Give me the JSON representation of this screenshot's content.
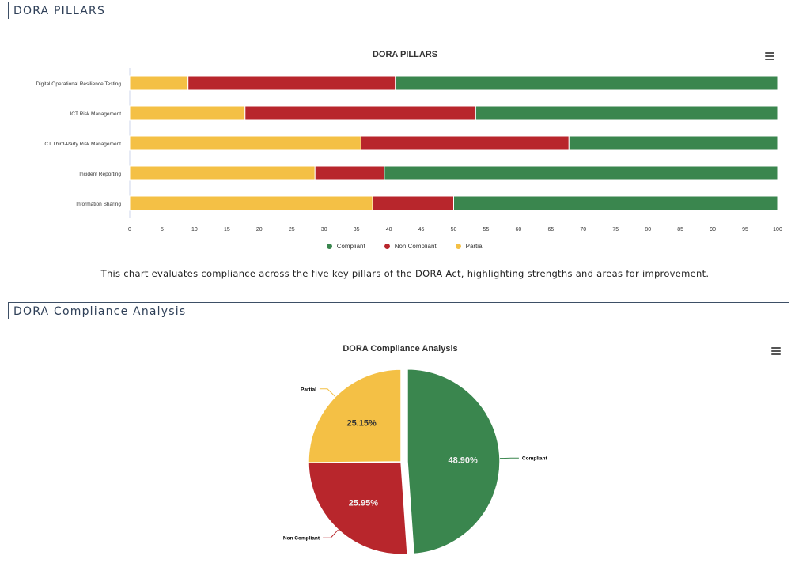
{
  "sections": {
    "pillars_header": "DORA PILLARS",
    "analysis_header": "DORA Compliance Analysis"
  },
  "caption": "This chart evaluates compliance across the five key pillars of the DORA Act, highlighting strengths and areas for improvement.",
  "colors": {
    "compliant": "#3a864e",
    "non_compliant": "#b8262c",
    "partial": "#f4c045"
  },
  "menu_icon": "hamburger-menu-icon",
  "chart_data": [
    {
      "type": "bar",
      "orientation": "horizontal",
      "stacked": true,
      "title": "DORA PILLARS",
      "categories": [
        "Digital Operational Resilience Testing",
        "ICT Risk Management",
        "ICT Third-Party Risk Management",
        "Incident Reporting",
        "Information Sharing"
      ],
      "series": [
        {
          "name": "Partial",
          "key": "partial",
          "values": [
            9,
            17.8,
            35.7,
            28.6,
            37.5
          ]
        },
        {
          "name": "Non Compliant",
          "key": "non_compliant",
          "values": [
            32,
            35.6,
            32.1,
            10.7,
            12.5
          ]
        },
        {
          "name": "Compliant",
          "key": "compliant",
          "values": [
            59,
            46.6,
            32.2,
            60.7,
            50
          ]
        }
      ],
      "legend": [
        {
          "name": "Compliant",
          "key": "compliant"
        },
        {
          "name": "Non Compliant",
          "key": "non_compliant"
        },
        {
          "name": "Partial",
          "key": "partial"
        }
      ],
      "xlim": [
        0,
        100
      ],
      "xticks": [
        "0",
        "5",
        "10",
        "15",
        "20",
        "25",
        "30",
        "35",
        "40",
        "45",
        "50",
        "55",
        "60",
        "65",
        "70",
        "75",
        "80",
        "85",
        "90",
        "95",
        "100"
      ],
      "legend_position": "bottom-center",
      "grid": false
    },
    {
      "type": "pie",
      "title": "DORA Compliance Analysis",
      "slices": [
        {
          "name": "Compliant",
          "key": "compliant",
          "value": 48.9,
          "label": "48.90%",
          "sliced": true
        },
        {
          "name": "Non Compliant",
          "key": "non_compliant",
          "value": 25.95,
          "label": "25.95%"
        },
        {
          "name": "Partial",
          "key": "partial",
          "value": 25.15,
          "label": "25.15%"
        }
      ]
    }
  ]
}
